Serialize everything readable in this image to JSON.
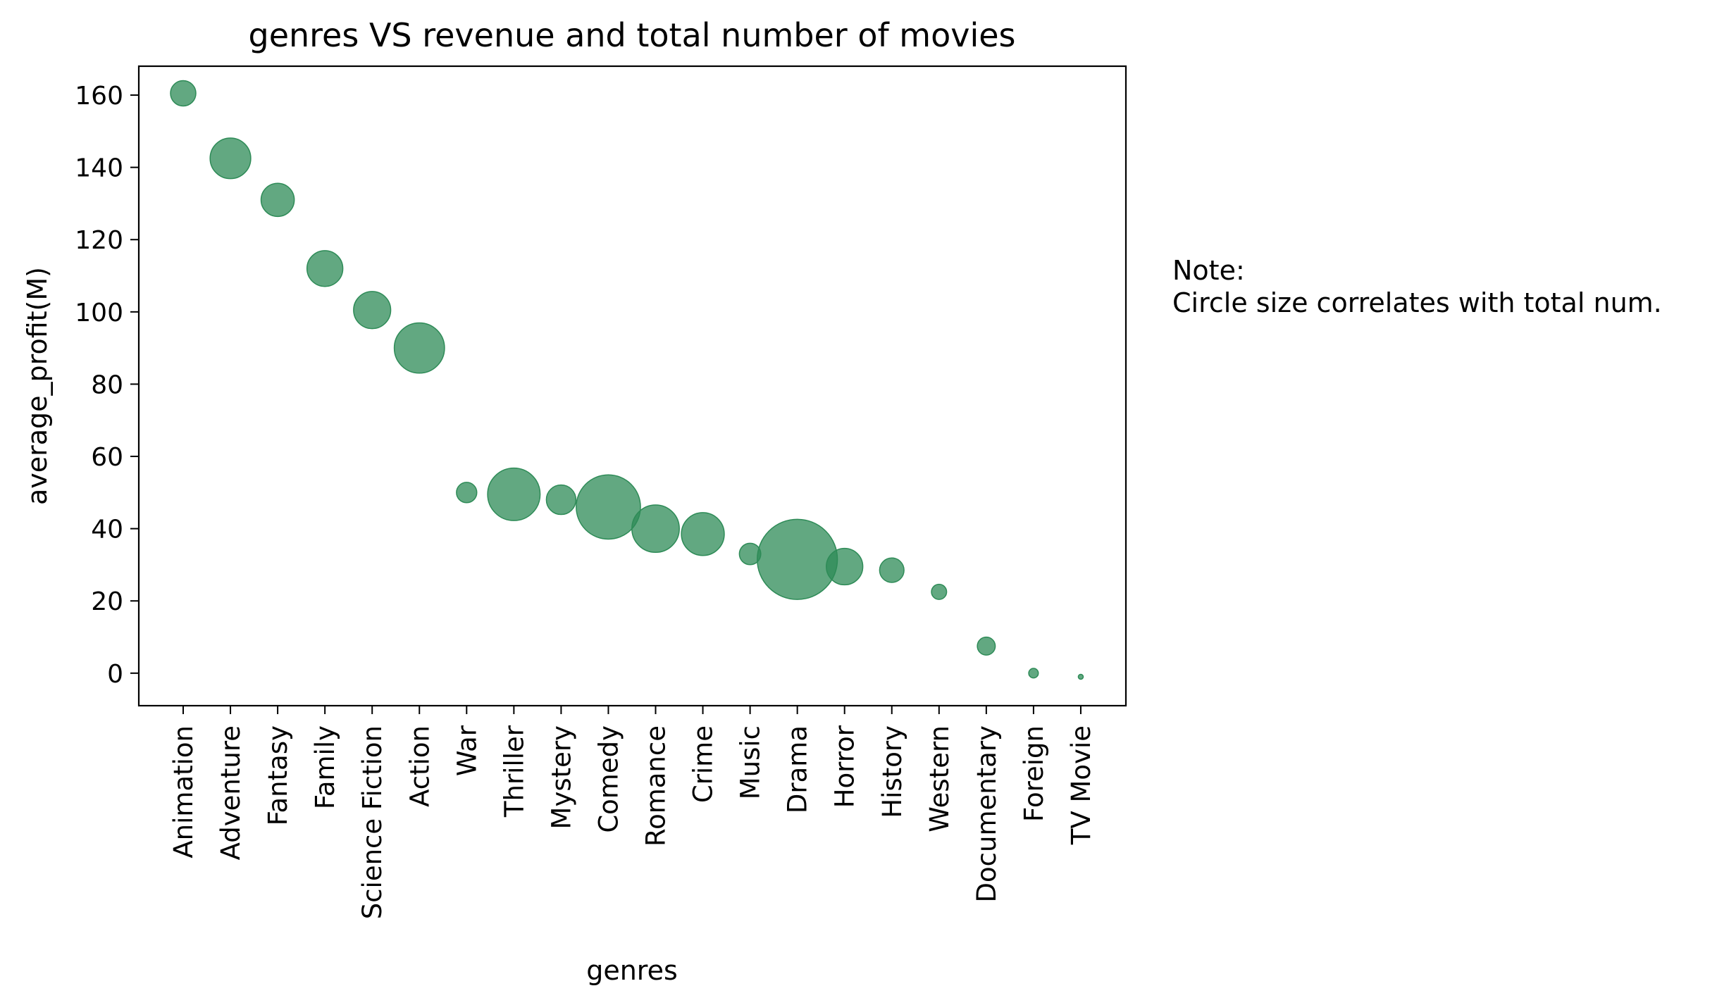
{
  "chart_data": {
    "type": "scatter",
    "title": "genres VS revenue and total number of movies",
    "xlabel": "genres",
    "ylabel": "average_profit(M)",
    "categories": [
      "Animation",
      "Adventure",
      "Fantasy",
      "Family",
      "Science Fiction",
      "Action",
      "War",
      "Thriller",
      "Mystery",
      "Comedy",
      "Romance",
      "Crime",
      "Music",
      "Drama",
      "Horror",
      "History",
      "Western",
      "Documentary",
      "Foreign",
      "TV Movie"
    ],
    "values": [
      160.5,
      142.5,
      131,
      112,
      100.5,
      90,
      50,
      49.5,
      48,
      46,
      40,
      38.5,
      33,
      31.5,
      29.5,
      28.5,
      22.5,
      7.5,
      0,
      -1
    ],
    "relative_size": [
      0.28,
      0.72,
      0.48,
      0.56,
      0.6,
      1.1,
      0.18,
      1.2,
      0.38,
      1.8,
      0.98,
      0.8,
      0.2,
      2.8,
      0.58,
      0.26,
      0.1,
      0.14,
      0.04,
      0.01
    ],
    "ylim": [
      -9,
      168
    ],
    "yticks": [
      0,
      20,
      40,
      60,
      80,
      100,
      120,
      140,
      160
    ],
    "grid": false,
    "marker_color": "#2e8b57",
    "marker_alpha": 0.75
  },
  "note": {
    "line1": "Note:",
    "line2": "Circle size correlates with total num."
  }
}
